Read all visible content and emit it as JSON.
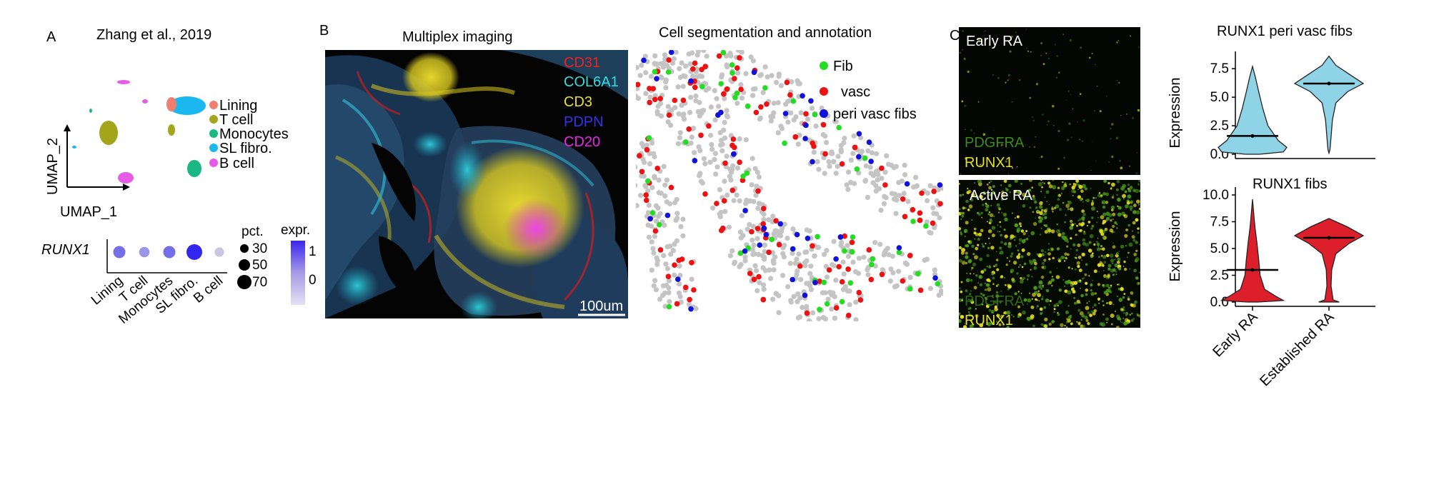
{
  "panels": {
    "A": {
      "letter": "A",
      "title": "Zhang et al., 2019",
      "umap": {
        "xlabel": "UMAP_1",
        "ylabel": "UMAP_2",
        "legend": [
          {
            "label": "Lining",
            "color": "#f07f6e"
          },
          {
            "label": "T cell",
            "color": "#a3a61a"
          },
          {
            "label": "Monocytes",
            "color": "#1ab882"
          },
          {
            "label": "SL fibro.",
            "color": "#1ab8ee"
          },
          {
            "label": "B cell",
            "color": "#e65ce6"
          }
        ]
      },
      "dotplot": {
        "gene": "RUNX1",
        "groups": [
          "Lining",
          "T cell",
          "Monocytes",
          "SL fibro.",
          "B cell"
        ],
        "pct": [
          50,
          40,
          50,
          70,
          35
        ],
        "expr": [
          0.3,
          -0.2,
          0.3,
          1.2,
          -0.8
        ],
        "size_legend_title": "pct.",
        "size_legend": [
          "30",
          "50",
          "70"
        ],
        "color_legend_title": "expr.",
        "color_legend_ticks": [
          "1",
          "0"
        ]
      }
    },
    "B": {
      "letter": "B",
      "imaging_title": "Multiplex imaging",
      "markers": [
        {
          "label": "CD31",
          "color": "#ee2222"
        },
        {
          "label": "COL6A1",
          "color": "#33dddd"
        },
        {
          "label": "CD3",
          "color": "#e8e02a"
        },
        {
          "label": "PDPN",
          "color": "#3333ee"
        },
        {
          "label": "CD20",
          "color": "#ee22ee"
        }
      ],
      "scale_bar": "100um",
      "segmentation_title": "Cell segmentation and annotation",
      "seg_legend": [
        {
          "label": "Fib",
          "color": "#22dd22"
        },
        {
          "label": "vasc",
          "color": "#ee1111"
        },
        {
          "label": "peri vasc fibs",
          "color": "#1111dd"
        }
      ]
    },
    "C": {
      "letter": "C",
      "images": [
        {
          "title": "Early RA",
          "label1": "PDGFRA",
          "label2": "RUNX1"
        },
        {
          "title": "Active RA",
          "label1": "PDGFRA",
          "label2": "RUNX1"
        }
      ]
    }
  },
  "chart_data": [
    {
      "type": "violin",
      "title": "RUNX1 peri vasc fibs",
      "ylabel": "Expression",
      "categories": [
        "Early RA",
        "Established RA"
      ],
      "colors": [
        "#8fd3e6",
        "#8fd3e6"
      ],
      "medians": [
        1.6,
        6.2
      ],
      "ylim": [
        0,
        8.7
      ],
      "yticks": [
        "0.0",
        "2.5",
        "5.0",
        "7.5"
      ]
    },
    {
      "type": "violin",
      "title": "RUNX1 fibs",
      "ylabel": "Expression",
      "categories": [
        "Early RA",
        "Established RA"
      ],
      "colors": [
        "#dd1f2b",
        "#dd1f2b"
      ],
      "medians": [
        3.0,
        6.0
      ],
      "ylim": [
        0,
        10.4
      ],
      "yticks": [
        "0.0",
        "2.5",
        "5.0",
        "7.5",
        "10.0"
      ]
    }
  ]
}
